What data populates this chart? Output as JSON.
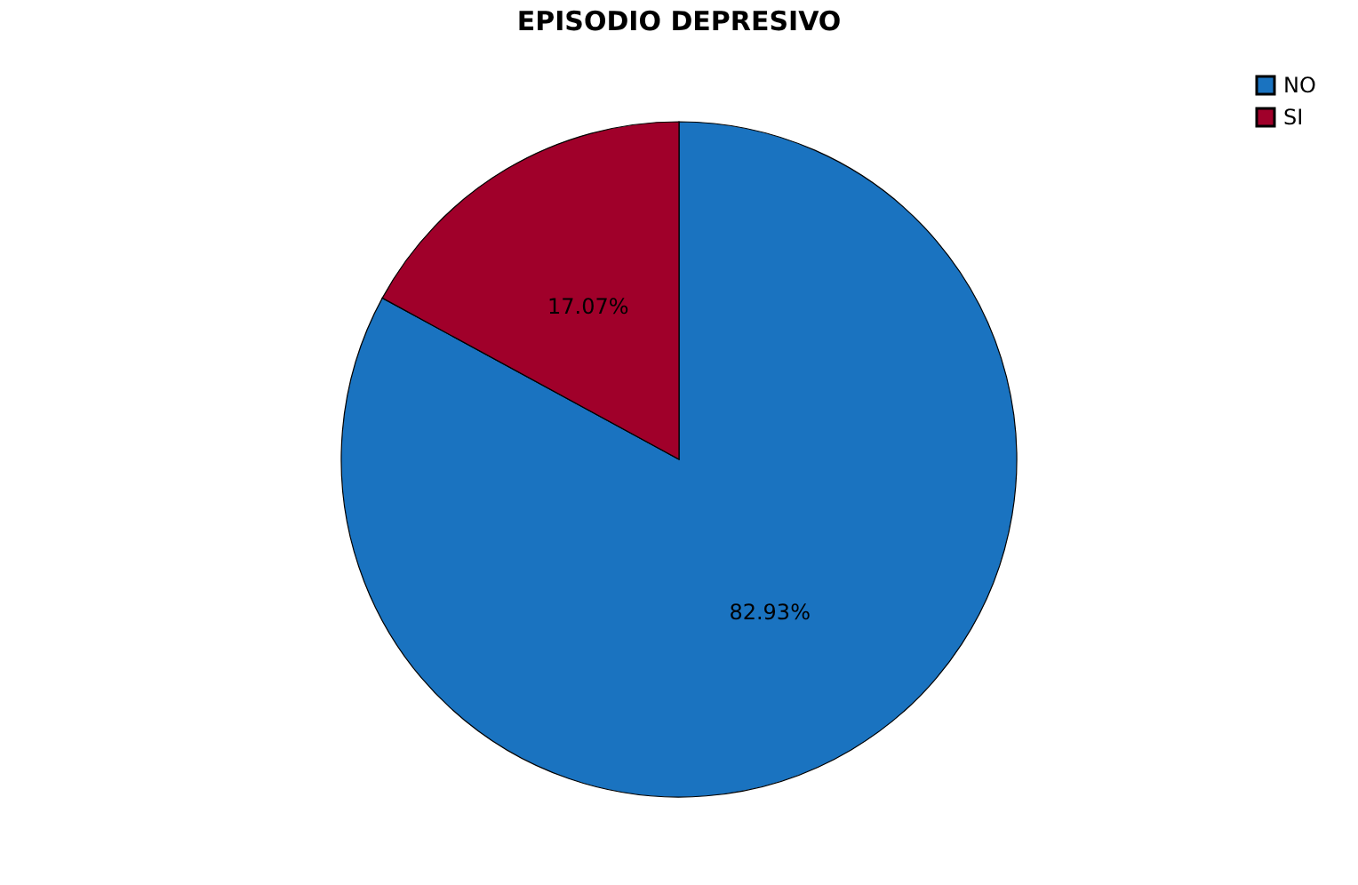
{
  "chart_data": {
    "type": "pie",
    "title": "EPISODIO DEPRESIVO",
    "categories": [
      "NO",
      "SI"
    ],
    "values": [
      82.93,
      17.07
    ],
    "colors": [
      "#1a73c0",
      "#a0002a"
    ],
    "value_labels": [
      "82.93%",
      "17.07%"
    ],
    "legend": "top right"
  }
}
